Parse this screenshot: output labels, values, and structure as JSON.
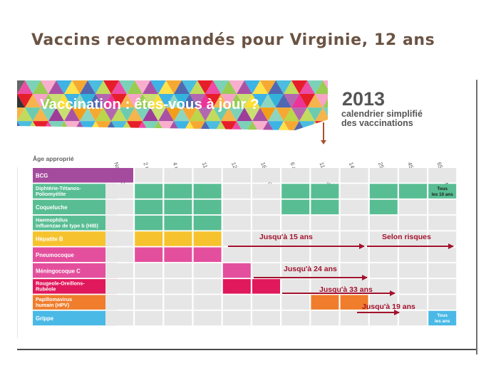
{
  "slide": {
    "title": "Vaccins recommandés pour Virginie, 12 ans"
  },
  "banner": {
    "question": "Vaccination : êtes-vous à jour ?",
    "year": "2013",
    "subtitle_line1": "calendrier simplifié",
    "subtitle_line2": "des vaccinations"
  },
  "table": {
    "age_header": "Âge approprié",
    "columns": [
      "Naissance",
      "2 mois",
      "4 mois",
      "11 mois",
      "12 mois",
      "16-18 mois",
      "6 ans",
      "11-13 ans",
      "14 ans",
      "25 ans",
      "45 ans",
      "65 ans et +"
    ],
    "rows": [
      {
        "label": [
          "BCG"
        ],
        "color": "#a44b9e",
        "cells": [
          0
        ]
      },
      {
        "label": [
          "Diphtérie-Tétanos-",
          "Poliomyélite"
        ],
        "color": "#58bd93",
        "cells": [
          1,
          2,
          3,
          6,
          7,
          9,
          10,
          11
        ],
        "cell_text": [
          "Tous",
          "les 10 ans"
        ],
        "cell_text_col": 11
      },
      {
        "label": [
          "Coqueluche"
        ],
        "color": "#58bd93",
        "cells": [
          1,
          2,
          3,
          6,
          7,
          9
        ]
      },
      {
        "label": [
          "Haemophilus",
          "influenzae de type b (HIB)"
        ],
        "color": "#58bd93",
        "cells": [
          1,
          2,
          3
        ]
      },
      {
        "label": [
          "Hépatite B"
        ],
        "color": "#f6c32e",
        "cells": [
          1,
          2,
          3
        ]
      },
      {
        "label": [
          "Pneumocoque"
        ],
        "color": "#e44f9d",
        "cells": [
          1,
          2,
          3
        ]
      },
      {
        "label": [
          "Méningocoque C"
        ],
        "color": "#e44f9d",
        "cells": [
          4
        ]
      },
      {
        "label": [
          "Rougeole-Oreillons-",
          "Rubéole"
        ],
        "color": "#e0185c",
        "cells": [
          4,
          5
        ]
      },
      {
        "label": [
          "Papillomavirus",
          "humain (HPV)"
        ],
        "color": "#ef7d2c",
        "cells": [
          7,
          8
        ]
      },
      {
        "label": [
          "Grippe"
        ],
        "color": "#4ab9e6",
        "cells": [
          11
        ],
        "cell_text": [
          "Tous",
          "les ans"
        ],
        "cell_text_col": 11
      }
    ]
  },
  "annotations": [
    {
      "text": "Jusqu'à 15 ans"
    },
    {
      "text": "Selon risques"
    },
    {
      "text": "Jusqu'à 24 ans"
    },
    {
      "text": "Jusqu'à 33 ans"
    },
    {
      "text": "Jusqu'à 19 ans"
    }
  ],
  "colors": {
    "title": "#6b5343",
    "arrow": "#a3122d",
    "marker": "#a5532e",
    "cell_empty": "#e6e6e6",
    "header_text": "#606060"
  }
}
